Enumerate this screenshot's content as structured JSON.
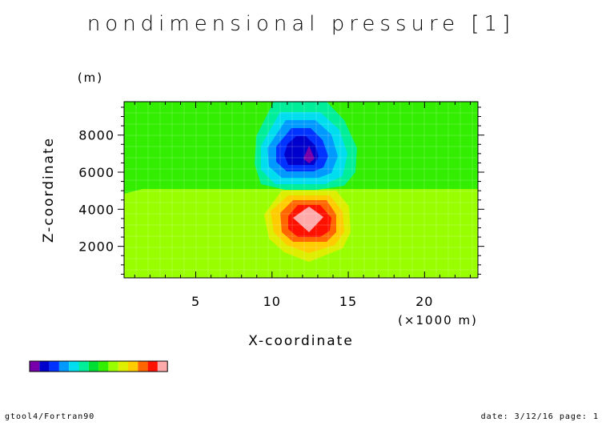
{
  "chart_data": {
    "type": "heatmap",
    "title": "nondimensional pressure [1]",
    "xlabel": "X-coordinate",
    "x_unit": "(×1000 m)",
    "ylabel": "Z-coordinate",
    "y_unit": "(m)",
    "xlim": [
      0.3,
      23.5
    ],
    "ylim": [
      300,
      9800
    ],
    "x_ticks": [
      5,
      10,
      15,
      20
    ],
    "y_ticks": [
      2000,
      4000,
      6000,
      8000
    ],
    "colors": {
      "background_green": "#33ee00",
      "background_lime": "#99ff00",
      "palette": [
        "#7700aa",
        "#0000cc",
        "#0033ff",
        "#0099ff",
        "#00ddee",
        "#00ee99",
        "#00dd33",
        "#33ee00",
        "#99ff00",
        "#ddee00",
        "#ffcc00",
        "#ff6600",
        "#ff1100",
        "#ffaaaa"
      ]
    },
    "regions": [
      {
        "base": "green",
        "z_range": [
          4700,
          9800
        ]
      },
      {
        "base": "lime",
        "z_range": [
          300,
          4700
        ]
      }
    ],
    "features": [
      {
        "kind": "low",
        "center_x": 12.5,
        "center_z": 6800
      },
      {
        "kind": "high",
        "center_x": 12.5,
        "center_z": 3400
      }
    ]
  },
  "footer": {
    "left": "gtool4/Fortran90",
    "right": "date: 3/12/16 page: 1"
  }
}
